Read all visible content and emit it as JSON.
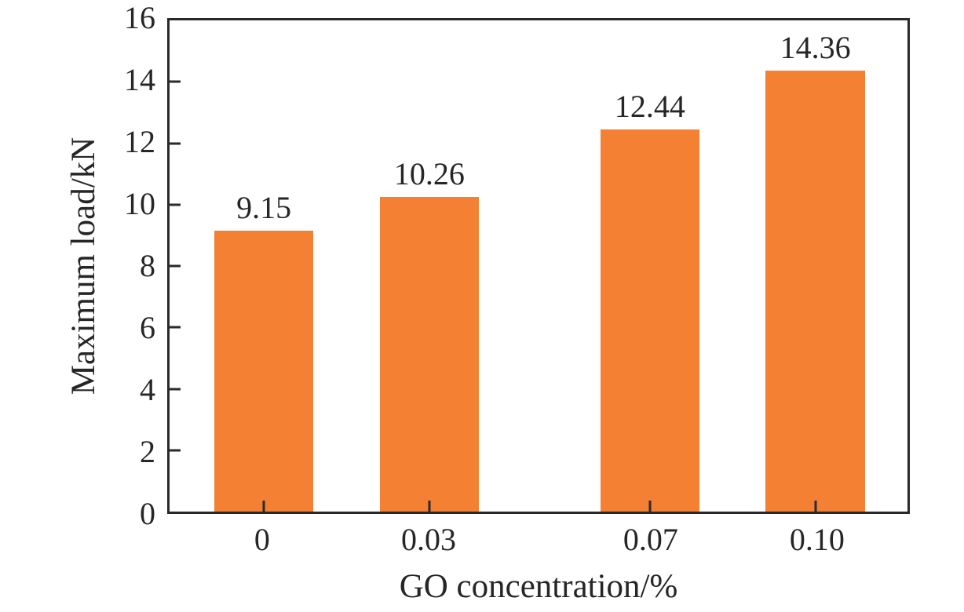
{
  "figure": {
    "background_color": "#ffffff",
    "axis_color": "#2a2a2a",
    "text_color": "#262626"
  },
  "chart_data": {
    "type": "bar",
    "title": "",
    "xlabel": "GO concentration/%",
    "ylabel": "Maximum load/kN",
    "categories": [
      "0",
      "0.03",
      "0.07",
      "0.10"
    ],
    "x": [
      0,
      0.03,
      0.07,
      0.1
    ],
    "values": [
      9.15,
      10.26,
      12.44,
      14.36
    ],
    "bar_labels": [
      "9.15",
      "10.26",
      "12.44",
      "14.36"
    ],
    "bar_color": "#F38033",
    "bar_width_data": 0.018,
    "xlim": [
      -0.0171,
      0.1167
    ],
    "ylim": [
      0,
      16
    ],
    "yticks": [
      0,
      2,
      4,
      6,
      8,
      10,
      12,
      14,
      16
    ],
    "ytick_labels": [
      "0",
      "2",
      "4",
      "6",
      "8",
      "10",
      "12",
      "14",
      "16"
    ],
    "grid": false,
    "legend": null,
    "tick_direction": "in"
  }
}
